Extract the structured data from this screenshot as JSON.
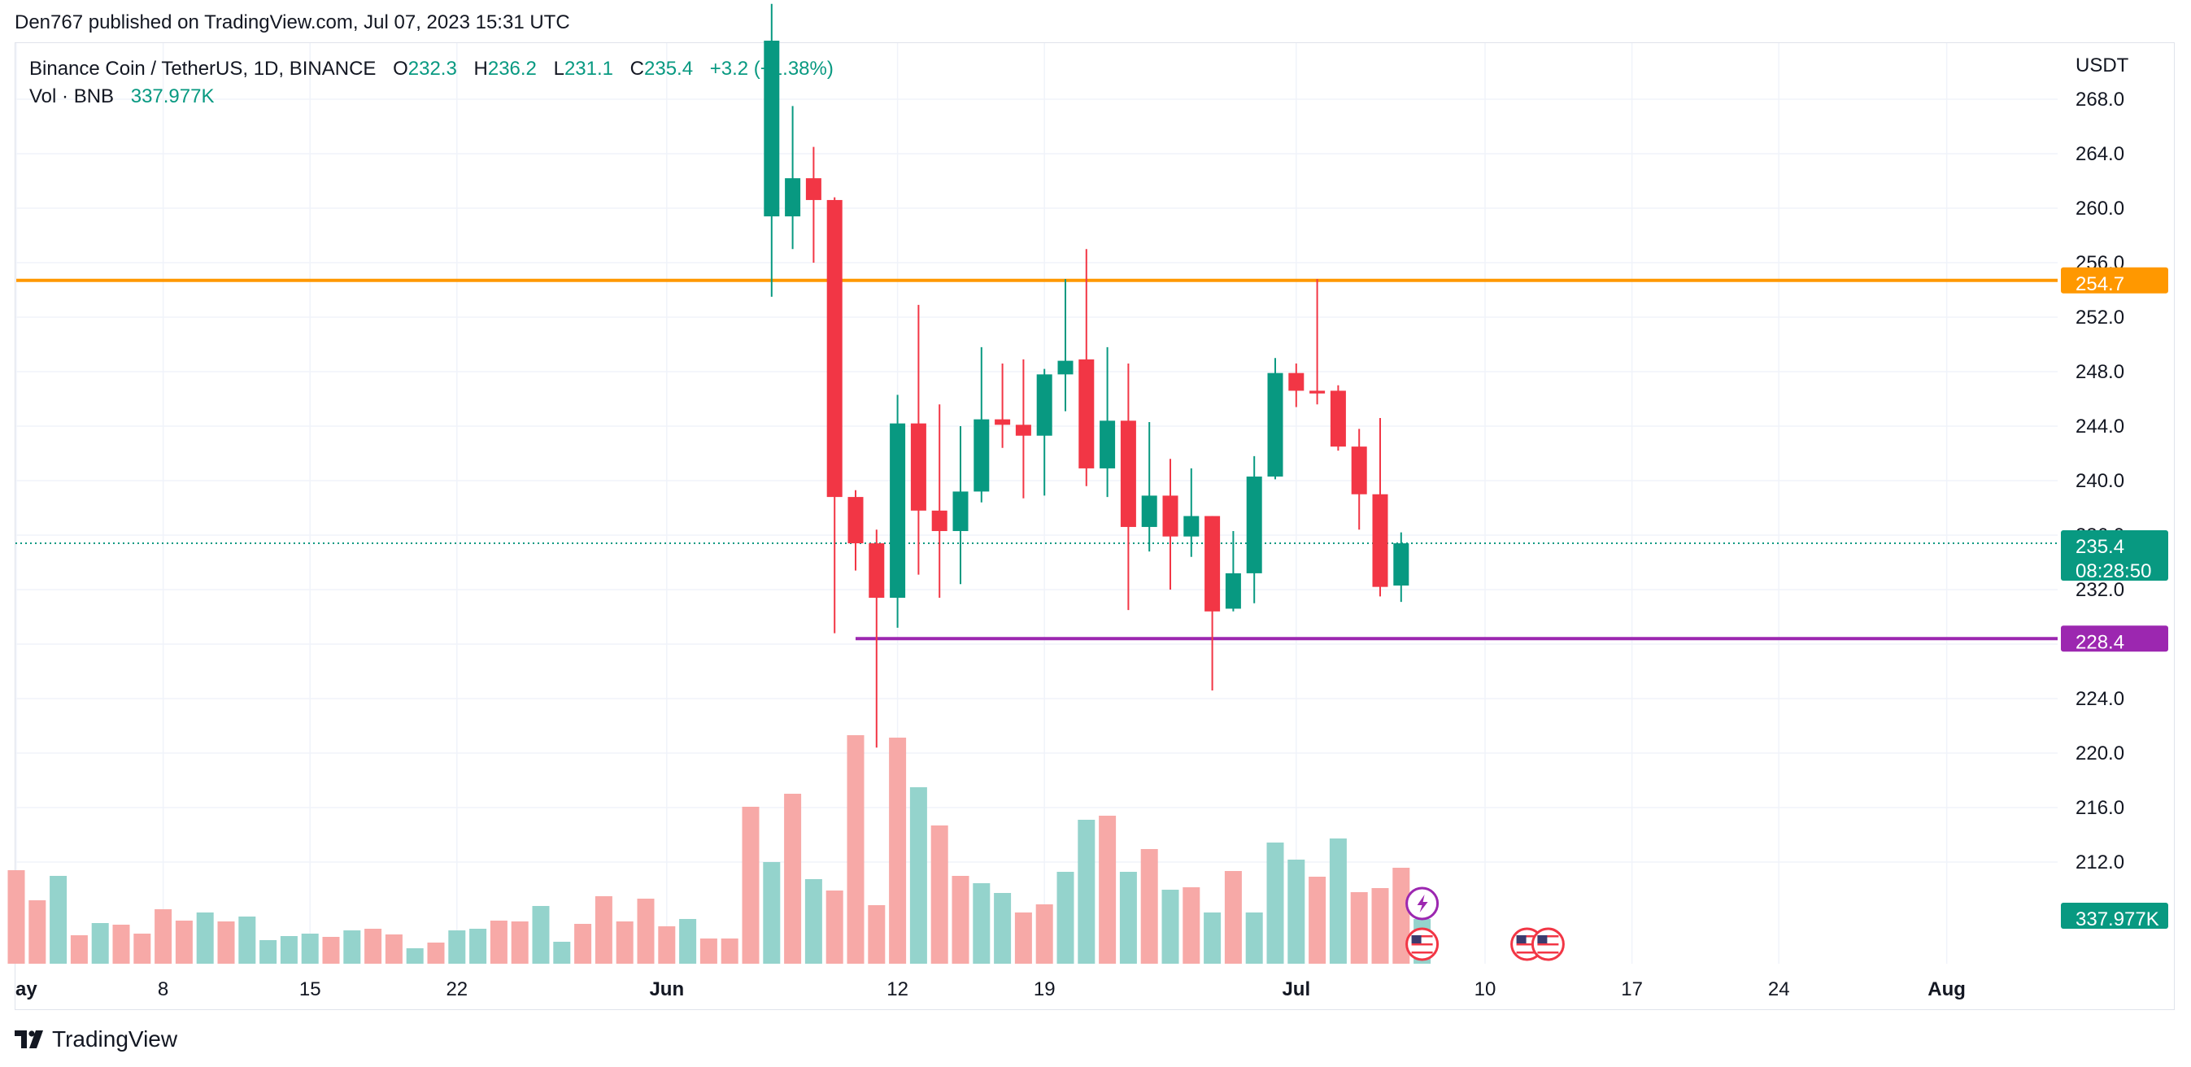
{
  "publisher_line": "Den767 published on TradingView.com, Jul 07, 2023 15:31 UTC",
  "legend": {
    "symbol": "Binance Coin / TetherUS, 1D, BINANCE",
    "o_label": "O",
    "o_value": "232.3",
    "h_label": "H",
    "h_value": "236.2",
    "l_label": "L",
    "l_value": "231.1",
    "c_label": "C",
    "c_value": "235.4",
    "change": "+3.2 (+1.38%)",
    "vol_label": "Vol · BNB",
    "vol_value": "337.977K"
  },
  "brand": "TradingView",
  "colors": {
    "up": "#089981",
    "down": "#f23645",
    "vol_up": "#94d3cc",
    "vol_down": "#f7a9a7",
    "resistance": "#ff9800",
    "support": "#9c27b0"
  },
  "chart_data": {
    "type": "candlestick",
    "currency": "USDT",
    "y_ticks": [
      "268.0",
      "264.0",
      "260.0",
      "256.0",
      "252.0",
      "248.0",
      "244.0",
      "240.0",
      "236.0",
      "232.0",
      "228.0",
      "224.0",
      "220.0",
      "216.0",
      "212.0"
    ],
    "x_ticks": [
      {
        "label": "ay",
        "date": "2023-05-01"
      },
      {
        "label": "8",
        "date": "2023-05-08"
      },
      {
        "label": "15",
        "date": "2023-05-15"
      },
      {
        "label": "22",
        "date": "2023-05-22"
      },
      {
        "label": "Jun",
        "date": "2023-06-01"
      },
      {
        "label": "12",
        "date": "2023-06-12"
      },
      {
        "label": "19",
        "date": "2023-06-19"
      },
      {
        "label": "Jul",
        "date": "2023-07-01"
      },
      {
        "label": "10",
        "date": "2023-07-10"
      },
      {
        "label": "17",
        "date": "2023-07-17"
      },
      {
        "label": "24",
        "date": "2023-07-24"
      },
      {
        "label": "Aug",
        "date": "2023-08-01"
      }
    ],
    "y_range": [
      207.0,
      275.0
    ],
    "candles": [
      {
        "date": "2023-06-06",
        "o": 259.4,
        "h": 275.0,
        "l": 253.5,
        "c": 275.0
      },
      {
        "date": "2023-06-07",
        "o": 259.4,
        "h": 267.5,
        "l": 257.0,
        "c": 262.2
      },
      {
        "date": "2023-06-08",
        "o": 262.2,
        "h": 264.5,
        "l": 256.0,
        "c": 260.6
      },
      {
        "date": "2023-06-09",
        "o": 260.6,
        "h": 260.8,
        "l": 228.8,
        "c": 238.8
      },
      {
        "date": "2023-06-10",
        "o": 238.8,
        "h": 239.3,
        "l": 233.4,
        "c": 235.4
      },
      {
        "date": "2023-06-11",
        "o": 235.4,
        "h": 236.4,
        "l": 220.4,
        "c": 231.4
      },
      {
        "date": "2023-06-12",
        "o": 231.4,
        "h": 246.3,
        "l": 229.2,
        "c": 244.2
      },
      {
        "date": "2023-06-13",
        "o": 244.2,
        "h": 252.9,
        "l": 233.1,
        "c": 237.8
      },
      {
        "date": "2023-06-14",
        "o": 237.8,
        "h": 245.6,
        "l": 231.4,
        "c": 236.3
      },
      {
        "date": "2023-06-15",
        "o": 236.3,
        "h": 244.0,
        "l": 232.4,
        "c": 239.2
      },
      {
        "date": "2023-06-16",
        "o": 239.2,
        "h": 249.8,
        "l": 238.4,
        "c": 244.5
      },
      {
        "date": "2023-06-17",
        "o": 244.5,
        "h": 248.6,
        "l": 242.4,
        "c": 244.1
      },
      {
        "date": "2023-06-18",
        "o": 244.1,
        "h": 248.9,
        "l": 238.7,
        "c": 243.3
      },
      {
        "date": "2023-06-19",
        "o": 243.3,
        "h": 248.2,
        "l": 238.9,
        "c": 247.8
      },
      {
        "date": "2023-06-20",
        "o": 247.8,
        "h": 254.8,
        "l": 245.1,
        "c": 248.8
      },
      {
        "date": "2023-06-21",
        "o": 248.9,
        "h": 257.0,
        "l": 239.6,
        "c": 240.9
      },
      {
        "date": "2023-06-22",
        "o": 240.9,
        "h": 249.8,
        "l": 238.8,
        "c": 244.4
      },
      {
        "date": "2023-06-23",
        "o": 244.4,
        "h": 248.6,
        "l": 230.5,
        "c": 236.6
      },
      {
        "date": "2023-06-24",
        "o": 236.6,
        "h": 244.3,
        "l": 234.8,
        "c": 238.9
      },
      {
        "date": "2023-06-25",
        "o": 238.9,
        "h": 241.6,
        "l": 232.0,
        "c": 235.9
      },
      {
        "date": "2023-06-26",
        "o": 235.9,
        "h": 240.9,
        "l": 234.4,
        "c": 237.4
      },
      {
        "date": "2023-06-27",
        "o": 237.4,
        "h": 237.4,
        "l": 224.6,
        "c": 230.4
      },
      {
        "date": "2023-06-28",
        "o": 230.6,
        "h": 236.3,
        "l": 230.4,
        "c": 233.2
      },
      {
        "date": "2023-06-29",
        "o": 233.2,
        "h": 241.8,
        "l": 231.0,
        "c": 240.3
      },
      {
        "date": "2023-06-30",
        "o": 240.3,
        "h": 249.0,
        "l": 240.1,
        "c": 247.9
      },
      {
        "date": "2023-07-01",
        "o": 247.9,
        "h": 248.6,
        "l": 245.4,
        "c": 246.6
      },
      {
        "date": "2023-07-02",
        "o": 246.6,
        "h": 254.8,
        "l": 245.6,
        "c": 246.4
      },
      {
        "date": "2023-07-03",
        "o": 246.6,
        "h": 247.0,
        "l": 242.2,
        "c": 242.5
      },
      {
        "date": "2023-07-04",
        "o": 242.5,
        "h": 243.8,
        "l": 236.4,
        "c": 239.0
      },
      {
        "date": "2023-07-05",
        "o": 239.0,
        "h": 244.6,
        "l": 231.5,
        "c": 232.2
      },
      {
        "date": "2023-07-06",
        "o": 232.3,
        "h": 236.2,
        "l": 231.1,
        "c": 235.4
      }
    ],
    "volume_bars": [
      {
        "date": "2023-05-01",
        "v": 115,
        "dir": "down"
      },
      {
        "date": "2023-05-02",
        "v": 78,
        "dir": "down"
      },
      {
        "date": "2023-05-03",
        "v": 108,
        "dir": "up"
      },
      {
        "date": "2023-05-04",
        "v": 35,
        "dir": "down"
      },
      {
        "date": "2023-05-05",
        "v": 50,
        "dir": "up"
      },
      {
        "date": "2023-05-06",
        "v": 48,
        "dir": "down"
      },
      {
        "date": "2023-05-07",
        "v": 37,
        "dir": "down"
      },
      {
        "date": "2023-05-08",
        "v": 67,
        "dir": "down"
      },
      {
        "date": "2023-05-09",
        "v": 53,
        "dir": "down"
      },
      {
        "date": "2023-05-10",
        "v": 63,
        "dir": "up"
      },
      {
        "date": "2023-05-11",
        "v": 52,
        "dir": "down"
      },
      {
        "date": "2023-05-12",
        "v": 58,
        "dir": "up"
      },
      {
        "date": "2023-05-13",
        "v": 29,
        "dir": "up"
      },
      {
        "date": "2023-05-14",
        "v": 34,
        "dir": "up"
      },
      {
        "date": "2023-05-15",
        "v": 37,
        "dir": "up"
      },
      {
        "date": "2023-05-16",
        "v": 33,
        "dir": "down"
      },
      {
        "date": "2023-05-17",
        "v": 41,
        "dir": "up"
      },
      {
        "date": "2023-05-18",
        "v": 43,
        "dir": "down"
      },
      {
        "date": "2023-05-19",
        "v": 36,
        "dir": "down"
      },
      {
        "date": "2023-05-20",
        "v": 19,
        "dir": "up"
      },
      {
        "date": "2023-05-21",
        "v": 26,
        "dir": "down"
      },
      {
        "date": "2023-05-22",
        "v": 41,
        "dir": "up"
      },
      {
        "date": "2023-05-23",
        "v": 43,
        "dir": "up"
      },
      {
        "date": "2023-05-24",
        "v": 53,
        "dir": "down"
      },
      {
        "date": "2023-05-25",
        "v": 52,
        "dir": "down"
      },
      {
        "date": "2023-05-26",
        "v": 71,
        "dir": "up"
      },
      {
        "date": "2023-05-27",
        "v": 27,
        "dir": "up"
      },
      {
        "date": "2023-05-28",
        "v": 49,
        "dir": "down"
      },
      {
        "date": "2023-05-29",
        "v": 83,
        "dir": "down"
      },
      {
        "date": "2023-05-30",
        "v": 52,
        "dir": "down"
      },
      {
        "date": "2023-05-31",
        "v": 80,
        "dir": "down"
      },
      {
        "date": "2023-06-01",
        "v": 46,
        "dir": "down"
      },
      {
        "date": "2023-06-02",
        "v": 55,
        "dir": "up"
      },
      {
        "date": "2023-06-03",
        "v": 31,
        "dir": "down"
      },
      {
        "date": "2023-06-04",
        "v": 31,
        "dir": "down"
      },
      {
        "date": "2023-06-05",
        "v": 193,
        "dir": "down"
      },
      {
        "date": "2023-06-06",
        "v": 125,
        "dir": "up"
      },
      {
        "date": "2023-06-07",
        "v": 209,
        "dir": "down"
      },
      {
        "date": "2023-06-08",
        "v": 104,
        "dir": "up"
      },
      {
        "date": "2023-06-09",
        "v": 90,
        "dir": "down"
      },
      {
        "date": "2023-06-10",
        "v": 281,
        "dir": "down"
      },
      {
        "date": "2023-06-11",
        "v": 72,
        "dir": "down"
      },
      {
        "date": "2023-06-12",
        "v": 278,
        "dir": "down"
      },
      {
        "date": "2023-06-13",
        "v": 217,
        "dir": "up"
      },
      {
        "date": "2023-06-14",
        "v": 170,
        "dir": "down"
      },
      {
        "date": "2023-06-15",
        "v": 108,
        "dir": "down"
      },
      {
        "date": "2023-06-16",
        "v": 99,
        "dir": "up"
      },
      {
        "date": "2023-06-17",
        "v": 87,
        "dir": "up"
      },
      {
        "date": "2023-06-18",
        "v": 63,
        "dir": "down"
      },
      {
        "date": "2023-06-19",
        "v": 73,
        "dir": "down"
      },
      {
        "date": "2023-06-20",
        "v": 113,
        "dir": "up"
      },
      {
        "date": "2023-06-21",
        "v": 177,
        "dir": "up"
      },
      {
        "date": "2023-06-22",
        "v": 182,
        "dir": "down"
      },
      {
        "date": "2023-06-23",
        "v": 113,
        "dir": "up"
      },
      {
        "date": "2023-06-24",
        "v": 141,
        "dir": "down"
      },
      {
        "date": "2023-06-25",
        "v": 91,
        "dir": "up"
      },
      {
        "date": "2023-06-26",
        "v": 94,
        "dir": "down"
      },
      {
        "date": "2023-06-27",
        "v": 63,
        "dir": "up"
      },
      {
        "date": "2023-06-28",
        "v": 114,
        "dir": "down"
      },
      {
        "date": "2023-06-29",
        "v": 63,
        "dir": "up"
      },
      {
        "date": "2023-06-30",
        "v": 149,
        "dir": "up"
      },
      {
        "date": "2023-07-01",
        "v": 128,
        "dir": "up"
      },
      {
        "date": "2023-07-02",
        "v": 107,
        "dir": "down"
      },
      {
        "date": "2023-07-03",
        "v": 154,
        "dir": "up"
      },
      {
        "date": "2023-07-04",
        "v": 88,
        "dir": "down"
      },
      {
        "date": "2023-07-05",
        "v": 93,
        "dir": "down"
      },
      {
        "date": "2023-07-06",
        "v": 118,
        "dir": "down"
      },
      {
        "date": "2023-07-07",
        "v": 55,
        "dir": "up"
      }
    ],
    "horizontal_lines": [
      {
        "name": "resistance",
        "price": 254.7,
        "label": "254.7",
        "start_date": "2023-05-01"
      },
      {
        "name": "support",
        "price": 228.4,
        "label": "228.4",
        "start_date": "2023-06-10"
      }
    ],
    "last_price": {
      "price": 235.4,
      "label": "235.4",
      "countdown": "08:28:50"
    },
    "volume_label": "337.977K",
    "event_markers": [
      {
        "icon": "lightning-icon",
        "date": "2023-07-07",
        "row": 1
      },
      {
        "icon": "us-flag-icon",
        "date": "2023-07-07",
        "row": 2
      },
      {
        "icon": "us-flag-icon",
        "date": "2023-07-12",
        "row": 2
      },
      {
        "icon": "us-flag-icon",
        "date": "2023-07-13",
        "row": 2
      }
    ]
  }
}
